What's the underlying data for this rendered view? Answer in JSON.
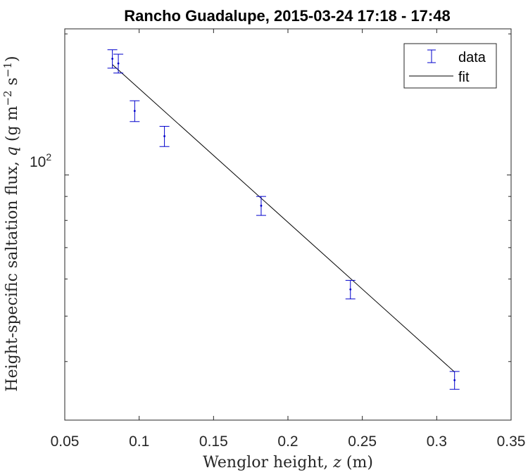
{
  "chart_data": {
    "type": "scatter",
    "title": "Rancho Guadalupe, 2015-03-24 17:18 - 17:48",
    "xlabel": {
      "text": "Wenglor height, ",
      "var": "z",
      "unit": " (m)"
    },
    "ylabel": {
      "text": "Height-specific saltation flux, ",
      "var": "q",
      "unit_open": " (g m",
      "sup1": "−2",
      "unit_mid": " s",
      "sup2": "−1",
      "unit_close": ")"
    },
    "xlim": [
      0.05,
      0.35
    ],
    "ylim": [
      30,
      205
    ],
    "yscale": "log",
    "x_ticks": [
      0.05,
      0.1,
      0.15,
      0.2,
      0.25,
      0.3,
      0.35
    ],
    "x_tick_labels": [
      "0.05",
      "0.1",
      "0.15",
      "0.2",
      "0.25",
      "0.3",
      "0.35"
    ],
    "y_major_tick": {
      "value": 100,
      "base": "10",
      "exp": "2"
    },
    "y_minor_ticks": [
      40,
      50,
      60,
      70,
      80,
      90,
      200
    ],
    "grid": false,
    "legend_position": "top-right",
    "series": [
      {
        "name": "data",
        "kind": "errorbar",
        "color": "#0000cc",
        "points": [
          {
            "x": 0.082,
            "y": 177,
            "err": 8
          },
          {
            "x": 0.086,
            "y": 173,
            "err": 8
          },
          {
            "x": 0.097,
            "y": 137,
            "err": 7
          },
          {
            "x": 0.117,
            "y": 121,
            "err": 6
          },
          {
            "x": 0.182,
            "y": 86,
            "err": 4
          },
          {
            "x": 0.242,
            "y": 57,
            "err": 2.6
          },
          {
            "x": 0.312,
            "y": 36.5,
            "err": 1.6
          }
        ]
      },
      {
        "name": "fit",
        "kind": "line",
        "color": "#000000",
        "x": [
          0.082,
          0.312
        ],
        "y": [
          172,
          38
        ]
      }
    ]
  }
}
